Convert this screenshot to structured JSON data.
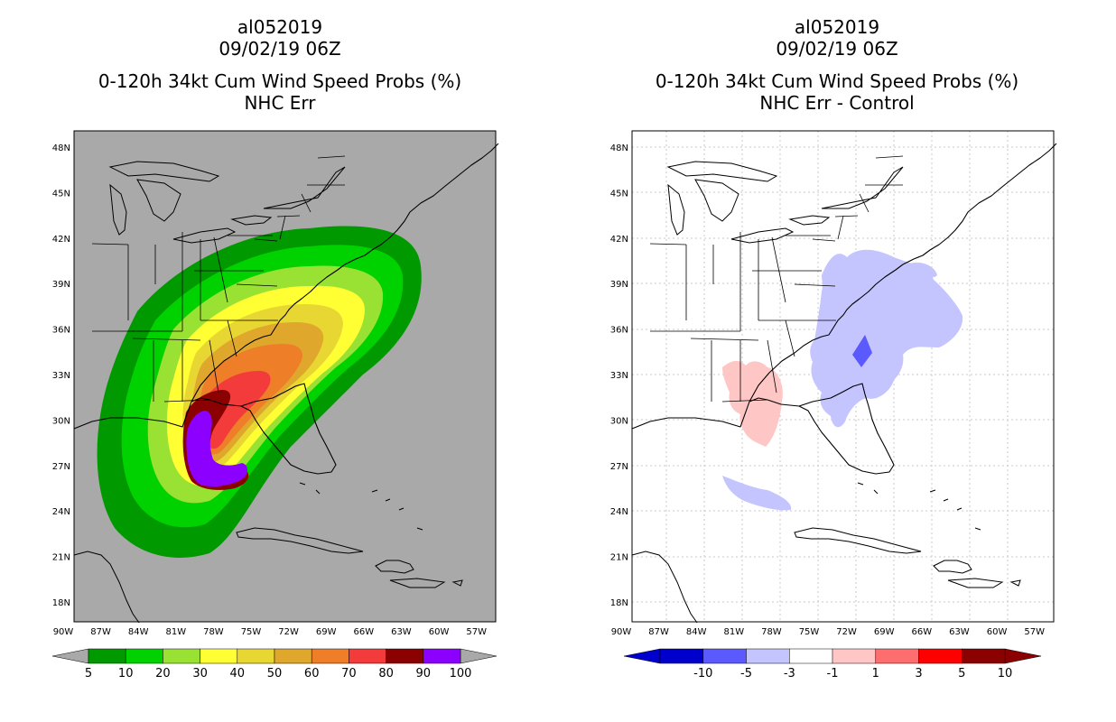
{
  "left": {
    "run": "al052019",
    "date": "09/02/19 06Z",
    "title": "0-120h 34kt Cum Wind Speed Probs (%)",
    "subtitle": "NHC Err",
    "background_color": "#a9a9a9",
    "colorbar": {
      "colors": [
        "#009900",
        "#00d200",
        "#99e233",
        "#ffff33",
        "#e8d733",
        "#dfa82c",
        "#ee7f28",
        "#f33b3b",
        "#8b0000",
        "#8b00ff"
      ],
      "labels": [
        "5",
        "10",
        "20",
        "30",
        "40",
        "50",
        "60",
        "70",
        "80",
        "90",
        "100"
      ]
    }
  },
  "right": {
    "run": "al052019",
    "date": "09/02/19 06Z",
    "title": "0-120h 34kt Cum Wind Speed Probs (%)",
    "subtitle": "NHC Err - Control",
    "background_color": "#ffffff",
    "colorbar": {
      "colors": [
        "#0000cc",
        "#5a5aff",
        "#c4c4ff",
        "#ffffff",
        "#ffc6c6",
        "#ff6e6e",
        "#ff0000",
        "#8b0000"
      ],
      "labels": [
        "-10",
        "-5",
        "-3",
        "-1",
        "1",
        "3",
        "5",
        "10"
      ]
    }
  },
  "axes": {
    "lon_labels": [
      "90W",
      "87W",
      "84W",
      "81W",
      "78W",
      "75W",
      "72W",
      "69W",
      "66W",
      "63W",
      "60W",
      "57W"
    ],
    "lat_labels": [
      "48N",
      "45N",
      "42N",
      "39N",
      "36N",
      "33N",
      "30N",
      "27N",
      "24N",
      "21N",
      "18N"
    ]
  }
}
